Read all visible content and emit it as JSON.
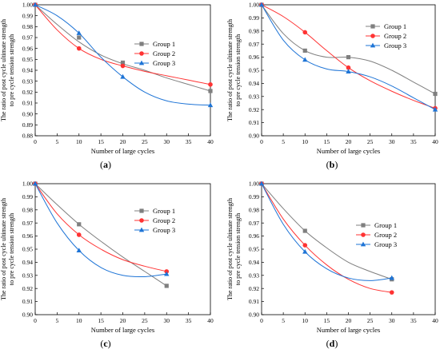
{
  "chart_data": [
    {
      "panel": "(a)",
      "type": "line",
      "xlabel": "Number of large cycles",
      "ylabel_line1": "The ratio of post cycle ultimate strength",
      "ylabel_line2": "to pre cycle tension strength",
      "xlim": [
        0,
        40
      ],
      "ylim": [
        0.88,
        1.0
      ],
      "xticks": [
        "0",
        "5",
        "10",
        "15",
        "20",
        "25",
        "30",
        "35",
        "40"
      ],
      "yticks": [
        "0.88",
        "0.89",
        "0.90",
        "0.91",
        "0.92",
        "0.93",
        "0.94",
        "0.95",
        "0.96",
        "0.97",
        "0.98",
        "0.99",
        "1.00"
      ],
      "legend_position": "upper-right",
      "series": [
        {
          "name": "Group 1",
          "color": "#7f7f7f",
          "marker": "square",
          "points": [
            [
              0,
              1.0
            ],
            [
              10,
              0.97
            ],
            [
              20,
              0.947
            ],
            [
              40,
              0.921
            ]
          ],
          "curve": [
            [
              0,
              1.0
            ],
            [
              5,
              0.982
            ],
            [
              10,
              0.966
            ],
            [
              15,
              0.954
            ],
            [
              20,
              0.946
            ],
            [
              25,
              0.94
            ],
            [
              30,
              0.933
            ],
            [
              35,
              0.927
            ],
            [
              40,
              0.921
            ]
          ]
        },
        {
          "name": "Group 2",
          "color": "#ff3333",
          "marker": "circle",
          "points": [
            [
              0,
              1.0
            ],
            [
              10,
              0.96
            ],
            [
              20,
              0.944
            ],
            [
              40,
              0.927
            ]
          ],
          "curve": [
            [
              0,
              1.0
            ],
            [
              5,
              0.977
            ],
            [
              10,
              0.96
            ],
            [
              15,
              0.95
            ],
            [
              20,
              0.944
            ],
            [
              25,
              0.939
            ],
            [
              30,
              0.935
            ],
            [
              35,
              0.931
            ],
            [
              40,
              0.927
            ]
          ]
        },
        {
          "name": "Group 3",
          "color": "#1e74d6",
          "marker": "triangle",
          "points": [
            [
              0,
              1.0
            ],
            [
              10,
              0.974
            ],
            [
              20,
              0.934
            ],
            [
              40,
              0.908
            ]
          ],
          "curve": [
            [
              0,
              1.0
            ],
            [
              5,
              0.99
            ],
            [
              10,
              0.974
            ],
            [
              15,
              0.952
            ],
            [
              20,
              0.934
            ],
            [
              25,
              0.92
            ],
            [
              30,
              0.912
            ],
            [
              35,
              0.909
            ],
            [
              40,
              0.908
            ]
          ]
        }
      ]
    },
    {
      "panel": "(b)",
      "type": "line",
      "xlabel": "Number of large cycles",
      "ylabel_line1": "The ratio of post cycle ultimate strength",
      "ylabel_line2": "to pre cycle tension strength",
      "xlim": [
        0,
        40
      ],
      "ylim": [
        0.9,
        1.0
      ],
      "xticks": [
        "0",
        "5",
        "10",
        "15",
        "20",
        "25",
        "30",
        "35",
        "40"
      ],
      "yticks": [
        "0.90",
        "0.91",
        "0.92",
        "0.93",
        "0.94",
        "0.95",
        "0.96",
        "0.97",
        "0.98",
        "0.99",
        "1.00"
      ],
      "legend_position": "upper-right",
      "series": [
        {
          "name": "Group 1",
          "color": "#7f7f7f",
          "marker": "square",
          "points": [
            [
              0,
              1.0
            ],
            [
              10,
              0.965
            ],
            [
              20,
              0.96
            ],
            [
              40,
              0.932
            ]
          ],
          "curve": [
            [
              0,
              1.0
            ],
            [
              5,
              0.978
            ],
            [
              10,
              0.965
            ],
            [
              15,
              0.96
            ],
            [
              20,
              0.96
            ],
            [
              25,
              0.957
            ],
            [
              30,
              0.95
            ],
            [
              35,
              0.941
            ],
            [
              40,
              0.932
            ]
          ]
        },
        {
          "name": "Group 2",
          "color": "#ff3333",
          "marker": "circle",
          "points": [
            [
              0,
              1.0
            ],
            [
              10,
              0.979
            ],
            [
              20,
              0.952
            ],
            [
              40,
              0.921
            ]
          ],
          "curve": [
            [
              0,
              1.0
            ],
            [
              5,
              0.991
            ],
            [
              10,
              0.979
            ],
            [
              15,
              0.965
            ],
            [
              20,
              0.952
            ],
            [
              25,
              0.942
            ],
            [
              30,
              0.934
            ],
            [
              35,
              0.927
            ],
            [
              40,
              0.921
            ]
          ]
        },
        {
          "name": "Group 3",
          "color": "#1e74d6",
          "marker": "triangle",
          "points": [
            [
              0,
              1.0
            ],
            [
              10,
              0.958
            ],
            [
              20,
              0.949
            ],
            [
              40,
              0.92
            ]
          ],
          "curve": [
            [
              0,
              1.0
            ],
            [
              5,
              0.973
            ],
            [
              10,
              0.958
            ],
            [
              15,
              0.951
            ],
            [
              20,
              0.949
            ],
            [
              25,
              0.945
            ],
            [
              30,
              0.938
            ],
            [
              35,
              0.929
            ],
            [
              40,
              0.92
            ]
          ]
        }
      ]
    },
    {
      "panel": "(c)",
      "type": "line",
      "xlabel": "Number of large cycles",
      "ylabel_line1": "The ratio of post cycle ultimate strength",
      "ylabel_line2": "to pre cycle tension strength",
      "xlim": [
        0,
        40
      ],
      "ylim": [
        0.9,
        1.0
      ],
      "xticks": [
        "0",
        "5",
        "10",
        "15",
        "20",
        "25",
        "30",
        "35",
        "40"
      ],
      "yticks": [
        "0.90",
        "0.91",
        "0.92",
        "0.93",
        "0.94",
        "0.95",
        "0.96",
        "0.97",
        "0.98",
        "0.99",
        "1.00"
      ],
      "legend_position": "upper-right",
      "series": [
        {
          "name": "Group 1",
          "color": "#7f7f7f",
          "marker": "square",
          "points": [
            [
              0,
              1.0
            ],
            [
              10,
              0.969
            ],
            [
              30,
              0.922
            ]
          ],
          "curve": [
            [
              0,
              1.0
            ],
            [
              5,
              0.984
            ],
            [
              10,
              0.969
            ],
            [
              15,
              0.956
            ],
            [
              20,
              0.944
            ],
            [
              25,
              0.933
            ],
            [
              30,
              0.922
            ]
          ]
        },
        {
          "name": "Group 2",
          "color": "#ff3333",
          "marker": "circle",
          "points": [
            [
              0,
              1.0
            ],
            [
              10,
              0.961
            ],
            [
              30,
              0.933
            ]
          ],
          "curve": [
            [
              0,
              1.0
            ],
            [
              5,
              0.977
            ],
            [
              10,
              0.961
            ],
            [
              15,
              0.95
            ],
            [
              20,
              0.942
            ],
            [
              25,
              0.937
            ],
            [
              30,
              0.933
            ]
          ]
        },
        {
          "name": "Group 3",
          "color": "#1e74d6",
          "marker": "triangle",
          "points": [
            [
              0,
              1.0
            ],
            [
              10,
              0.949
            ],
            [
              30,
              0.931
            ]
          ],
          "curve": [
            [
              0,
              1.0
            ],
            [
              5,
              0.97
            ],
            [
              10,
              0.949
            ],
            [
              15,
              0.936
            ],
            [
              20,
              0.93
            ],
            [
              25,
              0.929
            ],
            [
              30,
              0.931
            ]
          ]
        }
      ]
    },
    {
      "panel": "(d)",
      "type": "line",
      "xlabel": "Number of large cycles",
      "ylabel_line1": "The ratio of post cycle ultimate strength",
      "ylabel_line2": "to pre cycle tension strength",
      "xlim": [
        0,
        40
      ],
      "ylim": [
        0.9,
        1.0
      ],
      "xticks": [
        "0",
        "5",
        "10",
        "15",
        "20",
        "25",
        "30",
        "35",
        "40"
      ],
      "yticks": [
        "0.90",
        "0.91",
        "0.92",
        "0.93",
        "0.94",
        "0.95",
        "0.96",
        "0.97",
        "0.98",
        "0.99",
        "1.00"
      ],
      "legend_position": "upper-right",
      "series": [
        {
          "name": "Group 1",
          "color": "#7f7f7f",
          "marker": "square",
          "points": [
            [
              0,
              1.0
            ],
            [
              10,
              0.964
            ],
            [
              30,
              0.927
            ]
          ],
          "curve": [
            [
              0,
              1.0
            ],
            [
              5,
              0.981
            ],
            [
              10,
              0.964
            ],
            [
              15,
              0.951
            ],
            [
              20,
              0.94
            ],
            [
              25,
              0.933
            ],
            [
              30,
              0.927
            ]
          ]
        },
        {
          "name": "Group 2",
          "color": "#ff3333",
          "marker": "circle",
          "points": [
            [
              0,
              1.0
            ],
            [
              10,
              0.953
            ],
            [
              30,
              0.917
            ]
          ],
          "curve": [
            [
              0,
              1.0
            ],
            [
              5,
              0.973
            ],
            [
              10,
              0.953
            ],
            [
              15,
              0.938
            ],
            [
              20,
              0.927
            ],
            [
              25,
              0.92
            ],
            [
              30,
              0.917
            ]
          ]
        },
        {
          "name": "Group 3",
          "color": "#1e74d6",
          "marker": "triangle",
          "points": [
            [
              0,
              1.0
            ],
            [
              10,
              0.948
            ],
            [
              30,
              0.928
            ]
          ],
          "curve": [
            [
              0,
              1.0
            ],
            [
              5,
              0.969
            ],
            [
              10,
              0.948
            ],
            [
              15,
              0.935
            ],
            [
              20,
              0.928
            ],
            [
              25,
              0.926
            ],
            [
              30,
              0.928
            ]
          ]
        }
      ]
    }
  ]
}
